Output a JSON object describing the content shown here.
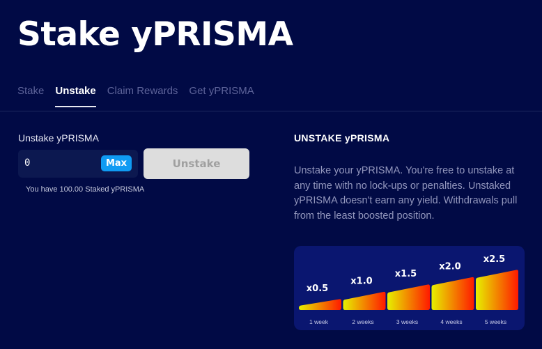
{
  "page": {
    "title": "Stake yPRISMA"
  },
  "tabs": [
    {
      "label": "Stake",
      "active": false
    },
    {
      "label": "Unstake",
      "active": true
    },
    {
      "label": "Claim Rewards",
      "active": false
    },
    {
      "label": "Get yPRISMA",
      "active": false
    }
  ],
  "form": {
    "label": "Unstake yPRISMA",
    "amount_value": "0",
    "max_label": "Max",
    "submit_label": "Unstake",
    "balance_text": "You have 100.00 Staked yPRISMA"
  },
  "info": {
    "title": "UNSTAKE yPRISMA",
    "text": "Unstake your yPRISMA. You're free to unstake at any time with no lock-ups or penalties. Unstaked yPRISMA doesn't earn any yield. Withdrawals pull from the least boosted position."
  },
  "boost_graphic": {
    "multipliers": [
      "x0.5",
      "x1.0",
      "x1.5",
      "x2.0",
      "x2.5"
    ],
    "weeks": [
      "1 week",
      "2 weeks",
      "3 weeks",
      "4 weeks",
      "5 weeks"
    ],
    "colors": {
      "start": "#e6f000",
      "end": "#ff1a00",
      "card": "#0a1670"
    }
  },
  "colors": {
    "background": "#010a45",
    "accent": "#0f9bf3"
  }
}
